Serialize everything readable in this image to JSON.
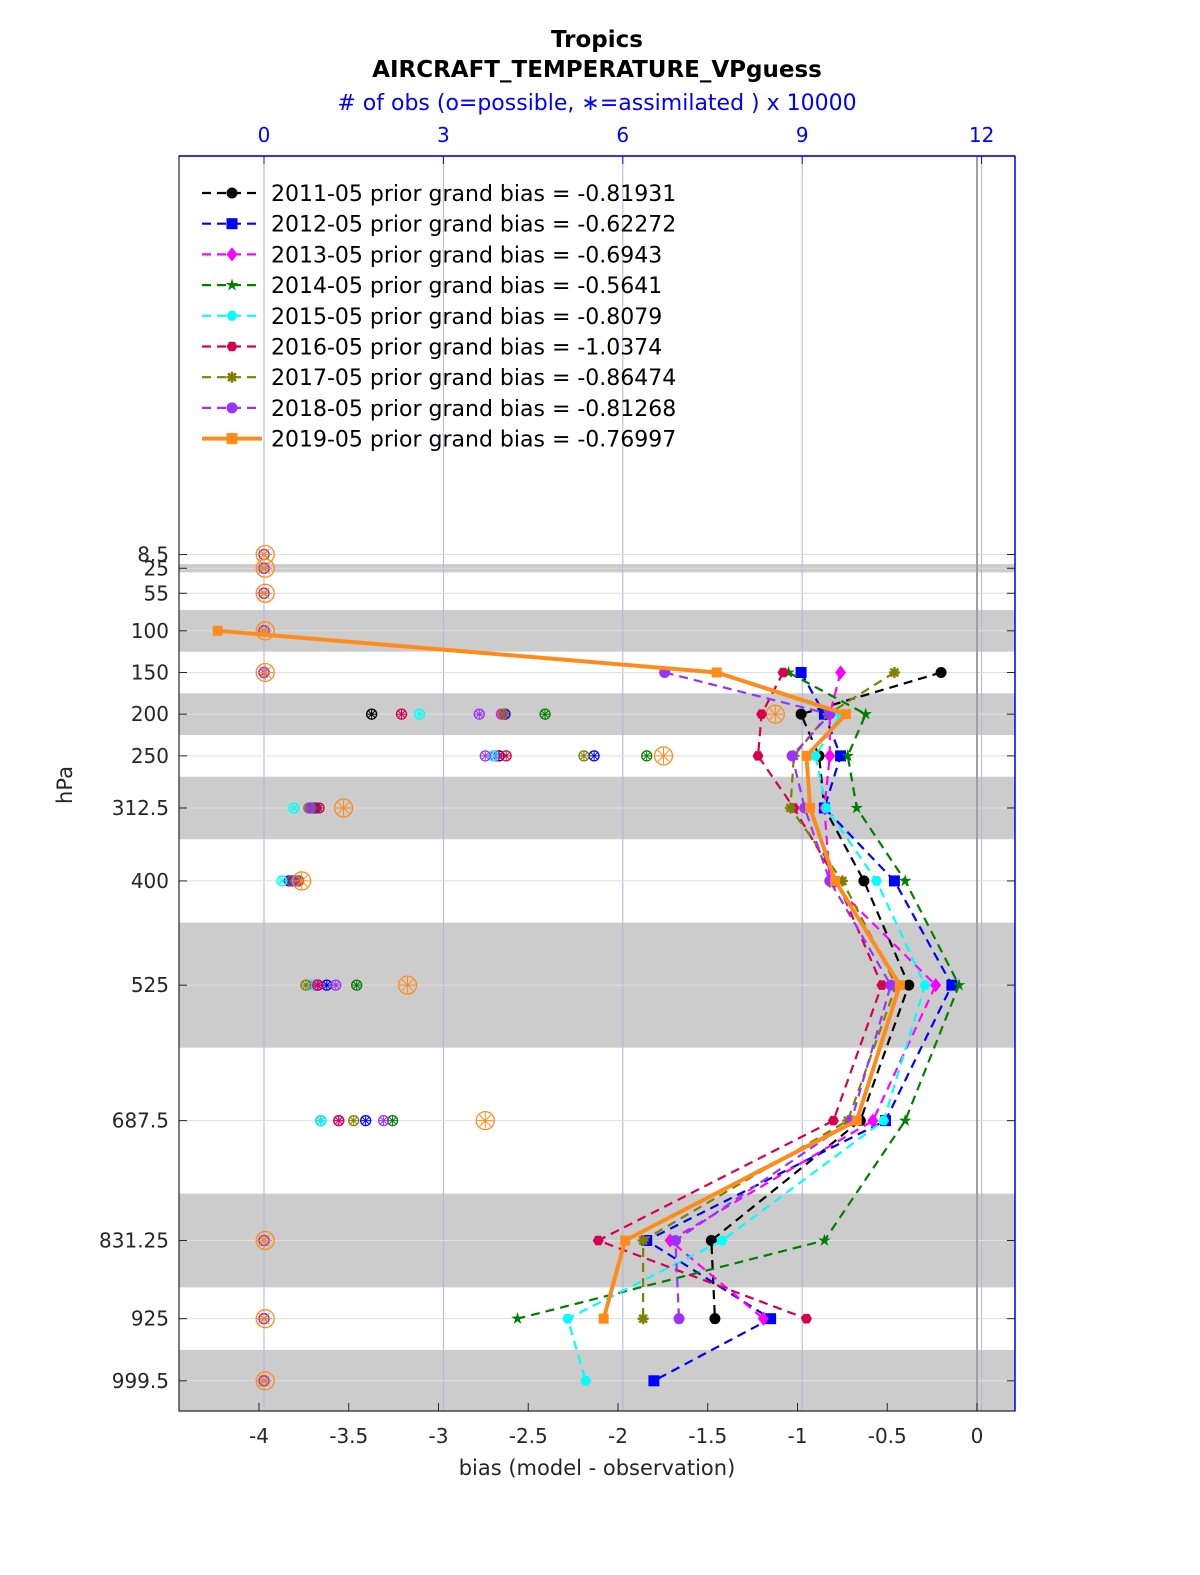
{
  "chart_data": {
    "type": "line",
    "title": "Tropics",
    "subtitle": "AIRCRAFT_TEMPERATURE_VPguess",
    "top_axis_label": "# of obs (o=possible, ∗=assimilated ) x 10000",
    "xlabel": "bias (model - observation)",
    "ylabel": "hPa",
    "xlim": [
      -4.45,
      0.2
    ],
    "top_xlim": [
      -1.4,
      12.6
    ],
    "x_ticks": [
      "-4",
      "-3.5",
      "-3",
      "-2.5",
      "-2",
      "-1.5",
      "-1",
      "-0.5",
      "0"
    ],
    "top_ticks": [
      "0",
      "3",
      "6",
      "9",
      "12"
    ],
    "levels": [
      8.5,
      25,
      55,
      100,
      150,
      200,
      250,
      312.5,
      400,
      525,
      687.5,
      831.25,
      925,
      999.5
    ],
    "level_labels": [
      "8.5",
      "25",
      "55",
      "100",
      "150",
      "200",
      "250",
      "312.5",
      "400",
      "525",
      "687.5",
      "831.25",
      "925",
      "999.5"
    ],
    "shaded_bands": [
      [
        20,
        30
      ],
      [
        75,
        125
      ],
      [
        175,
        225
      ],
      [
        275,
        350
      ],
      [
        450,
        600
      ],
      [
        775,
        887.5
      ],
      [
        962.5,
        1036.5
      ]
    ],
    "legend_location": "top-left",
    "grid": true,
    "series": [
      {
        "name": "2011-05 prior grand bias = -0.81931",
        "color": "#000000",
        "marker": "circle",
        "style": "dashed",
        "levels": [
          150,
          200,
          250,
          312.5,
          400,
          525,
          687.5,
          831.25,
          925
        ],
        "bias": [
          -0.2,
          -0.98,
          -0.88,
          -0.85,
          -0.63,
          -0.38,
          -0.65,
          -1.48,
          -1.46
        ]
      },
      {
        "name": "2012-05 prior grand bias = -0.62272",
        "color": "#0000ff",
        "marker": "square",
        "style": "dashed",
        "levels": [
          150,
          200,
          250,
          312.5,
          400,
          525,
          687.5,
          831.25,
          925,
          999.5
        ],
        "bias": [
          -0.98,
          -0.85,
          -0.76,
          -0.85,
          -0.46,
          -0.14,
          -0.51,
          -1.84,
          -1.15,
          -1.8
        ]
      },
      {
        "name": "2013-05 prior grand bias = -0.6943",
        "color": "#ff00ff",
        "marker": "diamond",
        "style": "dashed",
        "levels": [
          150,
          200,
          250,
          312.5,
          400,
          525,
          687.5,
          831.25,
          925
        ],
        "bias": [
          -0.76,
          -0.82,
          -0.82,
          -0.85,
          -0.82,
          -0.23,
          -0.58,
          -1.71,
          -1.19
        ]
      },
      {
        "name": "2014-05 prior grand bias = -0.5641",
        "color": "#007f00",
        "marker": "star",
        "style": "dashed",
        "levels": [
          150,
          200,
          250,
          312.5,
          400,
          525,
          687.5,
          831.25,
          925
        ],
        "bias": [
          -1.05,
          -0.62,
          -0.72,
          -0.67,
          -0.4,
          -0.1,
          -0.4,
          -0.85,
          -2.56
        ]
      },
      {
        "name": "2015-05 prior grand bias = -0.8079",
        "color": "#00ffff",
        "marker": "hexagon",
        "style": "dashed",
        "levels": [
          150,
          200,
          250,
          312.5,
          400,
          525,
          687.5,
          831.25,
          925,
          999.5
        ],
        "bias": [
          -1.45,
          -0.76,
          -0.9,
          -0.84,
          -0.56,
          -0.29,
          -0.52,
          -1.42,
          -2.28,
          -2.18
        ]
      },
      {
        "name": "2016-05 prior grand bias = -1.0374",
        "color": "#d6004f",
        "marker": "hexagon",
        "style": "dashed",
        "levels": [
          150,
          200,
          250,
          312.5,
          400,
          525,
          687.5,
          831.25,
          925
        ],
        "bias": [
          -1.08,
          -1.2,
          -1.22,
          -1.02,
          -0.78,
          -0.53,
          -0.8,
          -2.11,
          -0.95
        ]
      },
      {
        "name": "2017-05 prior grand bias = -0.86474",
        "color": "#7f7f00",
        "marker": "asterisk",
        "style": "dashed",
        "levels": [
          150,
          200,
          250,
          312.5,
          400,
          525,
          687.5,
          831.25,
          925
        ],
        "bias": [
          -0.46,
          -0.83,
          -1.02,
          -1.04,
          -0.75,
          -0.45,
          -0.72,
          -1.86,
          -1.86
        ]
      },
      {
        "name": "2018-05 prior grand bias = -0.81268",
        "color": "#9933ff",
        "marker": "circle",
        "style": "dashed",
        "levels": [
          150,
          200,
          250,
          312.5,
          400,
          525,
          687.5,
          831.25,
          925
        ],
        "bias": [
          -1.74,
          -0.82,
          -1.03,
          -0.96,
          -0.82,
          -0.48,
          -0.7,
          -1.68,
          -1.66
        ]
      },
      {
        "name": "2019-05 prior grand bias = -0.76997",
        "color": "#ff8c1a",
        "marker": "square",
        "style": "solid",
        "levels": [
          100,
          150,
          200,
          250,
          312.5,
          400,
          525,
          687.5,
          831.25,
          925
        ],
        "bias": [
          -4.23,
          -1.45,
          -0.73,
          -0.95,
          -0.93,
          -0.79,
          -0.43,
          -0.67,
          -1.96,
          -2.08
        ]
      }
    ],
    "obs_count": [
      {
        "level": 8.5,
        "possible": [
          0.0,
          0.0,
          0.0,
          0.0,
          0.0,
          0.0,
          0.0,
          0.0,
          0.02
        ],
        "assimilated": [
          0.0,
          0.0,
          0.0,
          0.0,
          0.0,
          0.0,
          0.0,
          0.0,
          0.0
        ]
      },
      {
        "level": 25,
        "possible": [
          0.0,
          0.0,
          0.0,
          0.0,
          0.0,
          0.0,
          0.0,
          0.0,
          0.02
        ],
        "assimilated": [
          0.0,
          0.0,
          0.0,
          0.0,
          0.0,
          0.0,
          0.0,
          0.0,
          0.0
        ]
      },
      {
        "level": 55,
        "possible": [
          0.0,
          0.0,
          0.0,
          0.0,
          0.0,
          0.0,
          0.0,
          0.0,
          0.02
        ],
        "assimilated": [
          0.0,
          0.0,
          0.0,
          0.0,
          0.0,
          0.0,
          0.0,
          0.0,
          0.0
        ]
      },
      {
        "level": 100,
        "possible": [
          0.0,
          0.0,
          0.0,
          0.0,
          0.0,
          0.0,
          0.0,
          0.0,
          0.02
        ],
        "assimilated": [
          0.0,
          0.0,
          0.0,
          0.0,
          0.0,
          0.0,
          0.0,
          0.0,
          0.0
        ]
      },
      {
        "level": 150,
        "possible": [
          0.0,
          0.0,
          0.0,
          0.0,
          0.0,
          0.0,
          0.0,
          0.0,
          0.02
        ],
        "assimilated": [
          0.0,
          0.0,
          0.0,
          0.0,
          0.0,
          0.0,
          0.0,
          0.0,
          0.02
        ]
      },
      {
        "level": 200,
        "possible": [
          1.8,
          4.03,
          3.97,
          4.7,
          2.6,
          2.3,
          4.0,
          3.6,
          8.55
        ],
        "assimilated": [
          1.8,
          4.03,
          3.97,
          4.7,
          2.6,
          2.3,
          4.0,
          3.6,
          8.55
        ]
      },
      {
        "level": 250,
        "possible": [
          3.93,
          5.52,
          3.87,
          6.4,
          3.83,
          4.05,
          5.35,
          3.7,
          6.68
        ],
        "assimilated": [
          3.93,
          5.52,
          3.87,
          6.4,
          3.83,
          4.05,
          5.35,
          3.7,
          6.68
        ]
      },
      {
        "level": 312.5,
        "possible": [
          0.82,
          0.85,
          0.8,
          0.87,
          0.5,
          0.92,
          0.75,
          0.78,
          1.33
        ],
        "assimilated": [
          0.82,
          0.85,
          0.8,
          0.87,
          0.5,
          0.92,
          0.75,
          0.78,
          1.33
        ]
      },
      {
        "level": 400,
        "possible": [
          0.42,
          0.48,
          0.45,
          0.5,
          0.3,
          0.58,
          0.55,
          0.53,
          0.63
        ],
        "assimilated": [
          0.42,
          0.48,
          0.45,
          0.5,
          0.3,
          0.58,
          0.55,
          0.53,
          0.63
        ]
      },
      {
        "level": 525,
        "possible": [
          0.9,
          1.05,
          0.85,
          1.55,
          0.8,
          0.9,
          0.7,
          1.2,
          2.4
        ],
        "assimilated": [
          0.9,
          1.05,
          0.85,
          1.55,
          0.8,
          0.9,
          0.7,
          1.2,
          2.4
        ]
      },
      {
        "level": 687.5,
        "possible": [
          0.95,
          1.7,
          1.25,
          2.15,
          0.95,
          1.25,
          1.5,
          2.0,
          3.7
        ],
        "assimilated": [
          0.95,
          1.7,
          1.25,
          2.15,
          0.95,
          1.25,
          1.5,
          2.0,
          3.7
        ]
      },
      {
        "level": 831.25,
        "possible": [
          0.0,
          0.0,
          0.0,
          0.0,
          0.0,
          0.0,
          0.0,
          0.0,
          0.02
        ],
        "assimilated": [
          0.0,
          0.0,
          0.0,
          0.0,
          0.0,
          0.0,
          0.0,
          0.0,
          0.0
        ]
      },
      {
        "level": 925,
        "possible": [
          0.0,
          0.0,
          0.0,
          0.0,
          0.0,
          0.0,
          0.0,
          0.0,
          0.02
        ],
        "assimilated": [
          0.0,
          0.0,
          0.0,
          0.0,
          0.0,
          0.0,
          0.0,
          0.0,
          0.0
        ]
      },
      {
        "level": 999.5,
        "possible": [
          0.0,
          0.0,
          0.0,
          0.0,
          0.0,
          0.0,
          0.0,
          0.0,
          0.02
        ],
        "assimilated": [
          0.0,
          0.0,
          0.0,
          0.0,
          0.0,
          0.0,
          0.0,
          0.0,
          0.0
        ]
      }
    ]
  }
}
